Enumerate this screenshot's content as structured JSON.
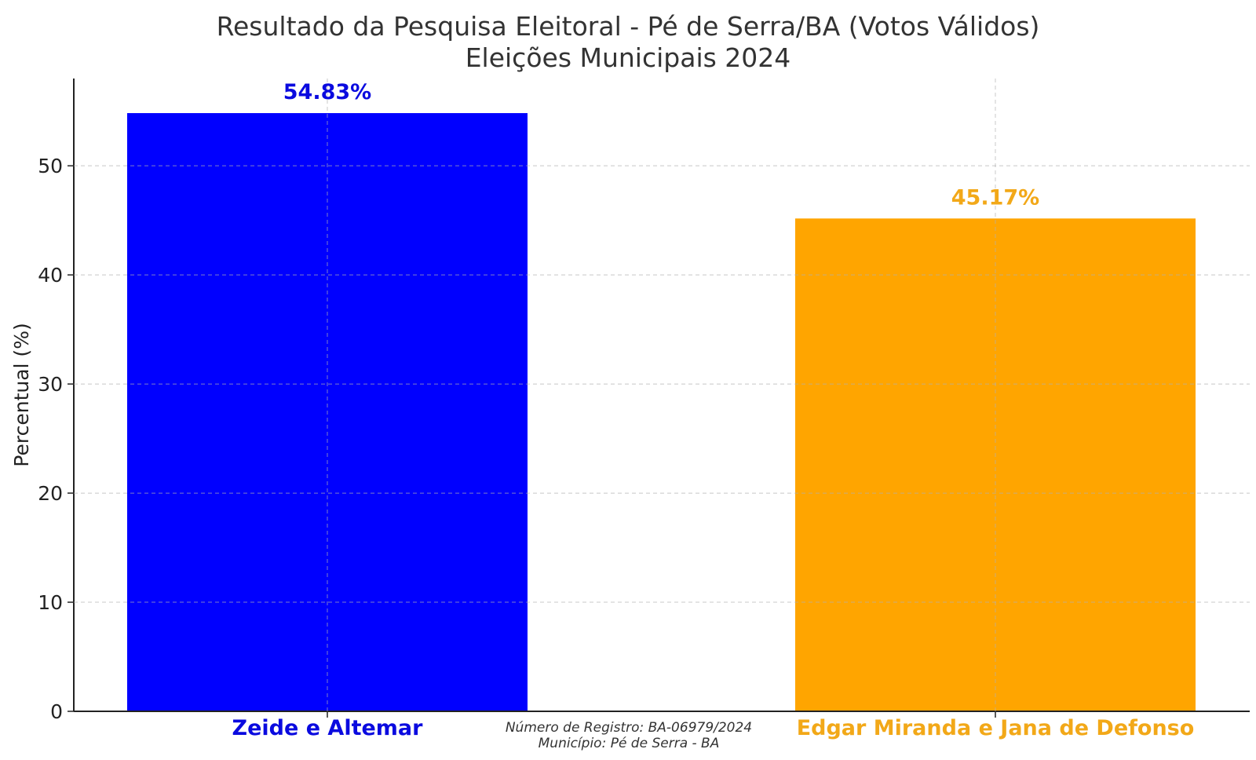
{
  "chart_data": {
    "type": "bar",
    "title": "Resultado da Pesquisa Eleitoral - Pé de Serra/BA (Votos Válidos)",
    "subtitle": "Eleições Municipais 2024",
    "xlabel": "",
    "ylabel": "Percentual (%)",
    "categories": [
      "Zeide e Altemar",
      "Edgar Miranda e Jana de Defonso"
    ],
    "values": [
      54.83,
      45.17
    ],
    "value_labels": [
      "54.83%",
      "45.17%"
    ],
    "colors": [
      "#0000ff",
      "#ffa500"
    ],
    "label_colors": [
      "#0a0adf",
      "#f2a818"
    ],
    "ylim": [
      0,
      58
    ],
    "yticks": [
      0,
      10,
      20,
      30,
      40,
      50
    ],
    "grid": true,
    "legend": "none"
  },
  "footer": {
    "registro": "Número de Registro: BA-06979/2024",
    "municipio": "Município: Pé de Serra - BA"
  }
}
